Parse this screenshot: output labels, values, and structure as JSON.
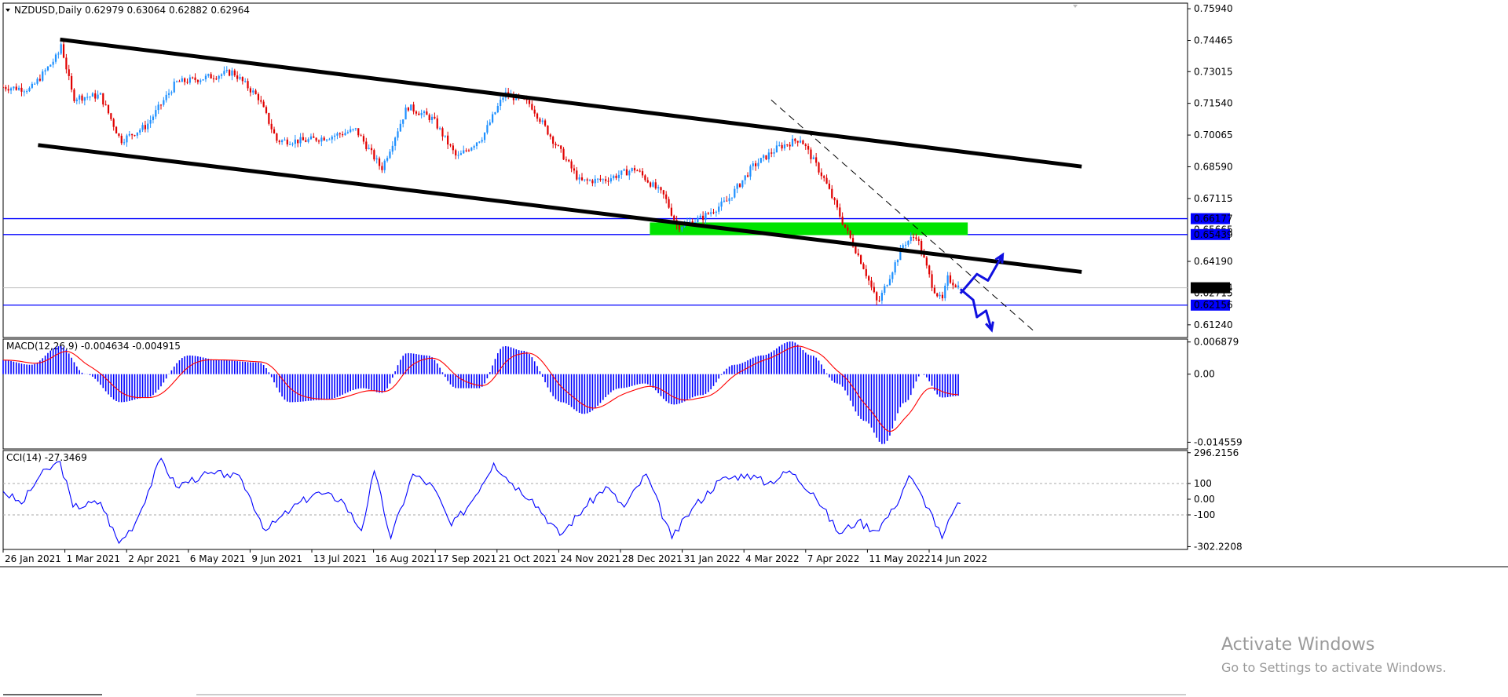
{
  "chart_data": [
    {
      "type": "candlestick",
      "title": "NZDUSD,Daily  0.62979 0.63064 0.62882 0.62964",
      "symbol": "NZDUSD,Daily",
      "ohlc_last": {
        "open": 0.62979,
        "high": 0.63064,
        "low": 0.62882,
        "close": 0.62964
      },
      "ylim": [
        0.6065,
        0.762
      ],
      "y_ticks": [
        "0.75940",
        "0.74465",
        "0.73015",
        "0.71540",
        "0.70065",
        "0.68590",
        "0.67115",
        "0.64190",
        "0.61240"
      ],
      "price_tags": [
        {
          "label": "0.66177",
          "value": 0.66177,
          "color": "#0000ff",
          "text_color": "#ffffff"
        },
        {
          "label": "0.65439",
          "value": 0.65439,
          "color": "#0000ff",
          "text_color": "#ffffff"
        },
        {
          "label": "0.62964",
          "value": 0.62964,
          "color": "#000000",
          "text_color": "#ffffff"
        },
        {
          "label": "0.62156",
          "value": 0.62156,
          "color": "#0000ff",
          "text_color": "#ffffff"
        }
      ],
      "hidden_labels": [
        "0.65665",
        "0.62715"
      ],
      "horizontal_lines": [
        0.66177,
        0.65439,
        0.62156
      ],
      "current_price_line": 0.62964,
      "x_ticks": [
        "26 Jan 2021",
        "1 Mar 2021",
        "2 Apr 2021",
        "6 May 2021",
        "9 Jun 2021",
        "13 Jul 2021",
        "16 Aug 2021",
        "17 Sep 2021",
        "21 Oct 2021",
        "24 Nov 2021",
        "28 Dec 2021",
        "31 Jan 2022",
        "4 Mar 2022",
        "7 Apr 2022",
        "11 May 2022",
        "14 Jun 2022"
      ],
      "close_path": [
        [
          "2021-01-26",
          0.723
        ],
        [
          "2021-02-10",
          0.722
        ],
        [
          "2021-02-25",
          0.738
        ],
        [
          "2021-02-26",
          0.745
        ],
        [
          "2021-03-05",
          0.718
        ],
        [
          "2021-03-20",
          0.719
        ],
        [
          "2021-03-31",
          0.698
        ],
        [
          "2021-04-14",
          0.705
        ],
        [
          "2021-04-30",
          0.725
        ],
        [
          "2021-05-14",
          0.727
        ],
        [
          "2021-05-31",
          0.73
        ],
        [
          "2021-06-14",
          0.718
        ],
        [
          "2021-06-24",
          0.698
        ],
        [
          "2021-07-09",
          0.698
        ],
        [
          "2021-07-23",
          0.7
        ],
        [
          "2021-08-06",
          0.703
        ],
        [
          "2021-08-20",
          0.685
        ],
        [
          "2021-09-03",
          0.714
        ],
        [
          "2021-09-17",
          0.708
        ],
        [
          "2021-09-30",
          0.69
        ],
        [
          "2021-10-14",
          0.7
        ],
        [
          "2021-10-26",
          0.72
        ],
        [
          "2021-11-09",
          0.715
        ],
        [
          "2021-11-23",
          0.696
        ],
        [
          "2021-12-06",
          0.679
        ],
        [
          "2021-12-20",
          0.68
        ],
        [
          "2022-01-05",
          0.685
        ],
        [
          "2022-01-21",
          0.672
        ],
        [
          "2022-01-28",
          0.658
        ],
        [
          "2022-02-10",
          0.662
        ],
        [
          "2022-02-24",
          0.67
        ],
        [
          "2022-03-10",
          0.686
        ],
        [
          "2022-03-24",
          0.695
        ],
        [
          "2022-04-05",
          0.699
        ],
        [
          "2022-04-18",
          0.68
        ],
        [
          "2022-04-28",
          0.66
        ],
        [
          "2022-05-09",
          0.64
        ],
        [
          "2022-05-17",
          0.622
        ],
        [
          "2022-05-31",
          0.65
        ],
        [
          "2022-06-07",
          0.654
        ],
        [
          "2022-06-16",
          0.63
        ],
        [
          "2022-06-21",
          0.623
        ],
        [
          "2022-06-24",
          0.634
        ],
        [
          "2022-07-01",
          0.6296
        ]
      ],
      "channel_lines": [
        {
          "name": "upper",
          "points": [
            [
              "2021-02-26",
              0.7451
            ],
            [
              "2022-09-05",
              0.686
            ]
          ]
        },
        {
          "name": "lower",
          "points": [
            [
              "2021-02-14",
              0.696
            ],
            [
              "2022-09-05",
              0.637
            ]
          ]
        }
      ],
      "dashed_trendline": {
        "points": [
          [
            "2022-03-20",
            0.717
          ],
          [
            "2022-08-10",
            0.6095
          ]
        ]
      },
      "zone": {
        "from": "2022-01-13",
        "to": "2022-07-05",
        "top": 0.66,
        "bottom": 0.6541,
        "color": "#00e300"
      },
      "projections": [
        {
          "name": "bullish",
          "points": [
            [
              "2022-07-01",
              0.627
            ],
            [
              "2022-07-06",
              0.632
            ],
            [
              "2022-07-10",
              0.636
            ],
            [
              "2022-07-16",
              0.633
            ],
            [
              "2022-07-24",
              0.645
            ]
          ]
        },
        {
          "name": "bearish",
          "points": [
            [
              "2022-07-01",
              0.629
            ],
            [
              "2022-07-08",
              0.624
            ],
            [
              "2022-07-10",
              0.616
            ],
            [
              "2022-07-15",
              0.619
            ],
            [
              "2022-07-18",
              0.61
            ]
          ]
        }
      ]
    },
    {
      "type": "histogram+line",
      "title": "MACD(12,26,9) -0.004634 -0.004915",
      "params": "12,26,9",
      "main_value": -0.004634,
      "signal_value": -0.004915,
      "ylim": [
        -0.016,
        0.0075
      ],
      "y_ticks": [
        "0.006879",
        "0.00",
        "-0.014559"
      ],
      "histogram_color": "#0000ff",
      "signal_color": "#ff0000",
      "macd_path": [
        [
          "2021-01-26",
          0.003
        ],
        [
          "2021-02-10",
          0.002
        ],
        [
          "2021-02-26",
          0.006
        ],
        [
          "2021-03-12",
          0.0
        ],
        [
          "2021-03-31",
          -0.006
        ],
        [
          "2021-04-14",
          -0.005
        ],
        [
          "2021-05-07",
          0.004
        ],
        [
          "2021-05-24",
          0.003
        ],
        [
          "2021-06-14",
          0.0025
        ],
        [
          "2021-07-01",
          -0.006
        ],
        [
          "2021-07-20",
          -0.0055
        ],
        [
          "2021-08-10",
          -0.003
        ],
        [
          "2021-08-20",
          -0.004
        ],
        [
          "2021-09-03",
          0.0045
        ],
        [
          "2021-09-14",
          0.004
        ],
        [
          "2021-09-30",
          -0.003
        ],
        [
          "2021-10-12",
          -0.003
        ],
        [
          "2021-10-26",
          0.006
        ],
        [
          "2021-11-05",
          0.005
        ],
        [
          "2021-11-26",
          -0.006
        ],
        [
          "2021-12-08",
          -0.0085
        ],
        [
          "2021-12-28",
          -0.003
        ],
        [
          "2022-01-10",
          -0.002
        ],
        [
          "2022-01-26",
          -0.0065
        ],
        [
          "2022-02-10",
          -0.0045
        ],
        [
          "2022-02-28",
          0.002
        ],
        [
          "2022-03-15",
          0.004
        ],
        [
          "2022-03-31",
          0.007
        ],
        [
          "2022-04-11",
          0.004
        ],
        [
          "2022-04-25",
          -0.002
        ],
        [
          "2022-05-10",
          -0.01
        ],
        [
          "2022-05-20",
          -0.015
        ],
        [
          "2022-06-01",
          -0.006
        ],
        [
          "2022-06-10",
          0.0
        ],
        [
          "2022-06-21",
          -0.005
        ],
        [
          "2022-07-01",
          -0.0046
        ]
      ]
    },
    {
      "type": "line",
      "title": "CCI(14) -27.3469",
      "params": "14",
      "value": -27.3469,
      "ylim": [
        -320,
        310
      ],
      "y_ticks": [
        "296.2156",
        "100",
        "0.00",
        "-100",
        "-302.2208"
      ],
      "levels": [
        100,
        -100
      ],
      "line_color": "#0000ff",
      "cci_path": [
        [
          "2021-01-26",
          50
        ],
        [
          "2021-02-05",
          -30
        ],
        [
          "2021-02-15",
          150
        ],
        [
          "2021-02-26",
          240
        ],
        [
          "2021-03-05",
          -50
        ],
        [
          "2021-03-20",
          -20
        ],
        [
          "2021-03-30",
          -280
        ],
        [
          "2021-04-08",
          -150
        ],
        [
          "2021-04-22",
          260
        ],
        [
          "2021-04-30",
          80
        ],
        [
          "2021-05-14",
          150
        ],
        [
          "2021-05-28",
          160
        ],
        [
          "2021-06-05",
          120
        ],
        [
          "2021-06-18",
          -200
        ],
        [
          "2021-07-02",
          -60
        ],
        [
          "2021-07-15",
          40
        ],
        [
          "2021-07-29",
          0
        ],
        [
          "2021-08-09",
          -200
        ],
        [
          "2021-08-16",
          180
        ],
        [
          "2021-08-25",
          -250
        ],
        [
          "2021-09-06",
          160
        ],
        [
          "2021-09-17",
          80
        ],
        [
          "2021-09-27",
          -170
        ],
        [
          "2021-10-07",
          -30
        ],
        [
          "2021-10-20",
          230
        ],
        [
          "2021-10-30",
          100
        ],
        [
          "2021-11-10",
          0
        ],
        [
          "2021-11-25",
          -230
        ],
        [
          "2021-12-08",
          -60
        ],
        [
          "2021-12-20",
          80
        ],
        [
          "2021-12-30",
          -50
        ],
        [
          "2022-01-11",
          160
        ],
        [
          "2022-01-25",
          -250
        ],
        [
          "2022-02-05",
          -60
        ],
        [
          "2022-02-20",
          120
        ],
        [
          "2022-03-07",
          160
        ],
        [
          "2022-03-18",
          100
        ],
        [
          "2022-03-30",
          180
        ],
        [
          "2022-04-12",
          40
        ],
        [
          "2022-04-26",
          -220
        ],
        [
          "2022-05-06",
          -140
        ],
        [
          "2022-05-16",
          -200
        ],
        [
          "2022-05-26",
          -60
        ],
        [
          "2022-06-03",
          150
        ],
        [
          "2022-06-14",
          -60
        ],
        [
          "2022-06-21",
          -250
        ],
        [
          "2022-06-28",
          -60
        ],
        [
          "2022-07-01",
          -27
        ]
      ]
    }
  ],
  "watermark": {
    "line1": "Activate Windows",
    "line2": "Go to Settings to activate Windows."
  }
}
